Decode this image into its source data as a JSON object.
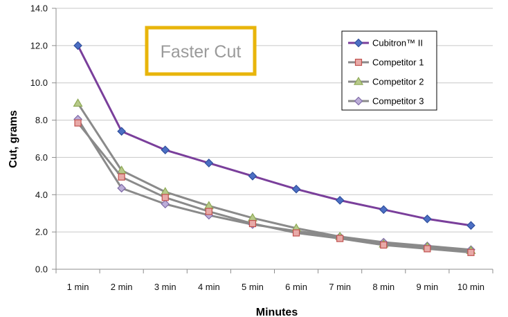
{
  "chart_data": {
    "type": "line",
    "title": "",
    "xlabel": "Minutes",
    "ylabel": "Cut, grams",
    "categories": [
      "1 min",
      "2 min",
      "3 min",
      "4 min",
      "5 min",
      "6 min",
      "7 min",
      "8 min",
      "9 min",
      "10 min"
    ],
    "ylim": [
      0,
      14
    ],
    "yticks": [
      "0.0",
      "2.0",
      "4.0",
      "6.0",
      "8.0",
      "10.0",
      "12.0",
      "14.0"
    ],
    "grid": "horizontal",
    "legend_position": "top-right",
    "series": [
      {
        "name": "Cubitron™ II",
        "color": "#7a3f9b",
        "marker": "diamond",
        "marker_color": "#4c6fc4",
        "values": [
          12.0,
          7.4,
          6.4,
          5.7,
          5.0,
          4.3,
          3.7,
          3.2,
          2.7,
          2.35
        ]
      },
      {
        "name": "Competitor 1",
        "color": "#8a8a8a",
        "marker": "square",
        "marker_color": "#e8aaa8",
        "values": [
          7.85,
          4.95,
          3.85,
          3.1,
          2.45,
          1.95,
          1.65,
          1.3,
          1.1,
          0.9
        ]
      },
      {
        "name": "Competitor 2",
        "color": "#8a8a8a",
        "marker": "triangle",
        "marker_color": "#b7c98a",
        "values": [
          8.9,
          5.3,
          4.15,
          3.4,
          2.75,
          2.2,
          1.75,
          1.35,
          1.2,
          1.0
        ]
      },
      {
        "name": "Competitor 3",
        "color": "#8a8a8a",
        "marker": "diamond",
        "marker_color": "#bcaed8",
        "values": [
          8.05,
          4.35,
          3.5,
          2.9,
          2.4,
          2.05,
          1.75,
          1.45,
          1.25,
          1.05
        ]
      }
    ],
    "callout": {
      "text": "Faster Cut",
      "border_color": "#e8b50b",
      "text_color": "#9a9a9a"
    }
  }
}
